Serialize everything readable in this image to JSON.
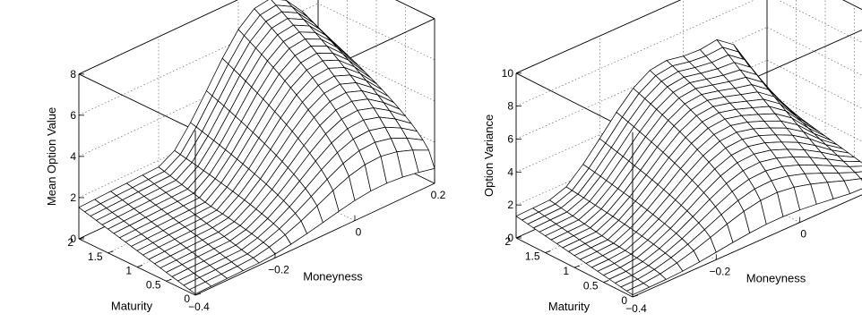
{
  "chart_data": [
    {
      "type": "surface",
      "title": "",
      "xlabel": "Maturity",
      "ylabel": "Moneyness",
      "zlabel": "Mean Option Value",
      "x_ticks": [
        "0",
        "0.5",
        "1",
        "1.5",
        "2"
      ],
      "y_ticks": [
        "−0.4",
        "−0.2",
        "0",
        "0.2"
      ],
      "z_ticks": [
        "0",
        "2",
        "4",
        "6",
        "8"
      ],
      "xlim": [
        0,
        2
      ],
      "ylim": [
        -0.4,
        0.2
      ],
      "zlim": [
        0,
        8
      ],
      "grid": true,
      "surface": {
        "maturity": [
          0,
          0.1,
          0.2,
          0.3,
          0.4,
          0.5,
          0.6,
          0.7,
          0.8,
          0.9,
          1.0,
          1.1,
          1.2,
          1.3,
          1.4,
          1.5,
          1.6,
          1.7,
          1.8,
          1.9,
          2.0
        ],
        "moneyness": [
          -0.4,
          -0.36,
          -0.32,
          -0.28,
          -0.24,
          -0.2,
          -0.16,
          -0.12,
          -0.08,
          -0.04,
          0,
          0.04,
          0.08,
          0.12,
          0.16,
          0.2
        ],
        "values_at_corners": {
          "maturity_0_moneyness_-0.4": 0.1,
          "maturity_2_moneyness_-0.4": 2.6,
          "maturity_2_moneyness_0.2": 3.4,
          "maturity_0_moneyness_0.2": 0.5
        },
        "peak": {
          "maturity": 1.2,
          "moneyness": 0.06,
          "value": 7.7
        }
      }
    },
    {
      "type": "surface",
      "title": "",
      "xlabel": "Maturity",
      "ylabel": "Moneyness",
      "zlabel": "Option Variance",
      "x_ticks": [
        "0",
        "0.5",
        "1",
        "1.5",
        "2"
      ],
      "y_ticks": [
        "−0.4",
        "−0.2",
        "0",
        "0.2"
      ],
      "z_ticks": [
        "0",
        "2",
        "4",
        "6",
        "8",
        "10"
      ],
      "xlim": [
        0,
        2
      ],
      "ylim": [
        -0.4,
        0.2
      ],
      "zlim": [
        0,
        10
      ],
      "grid": true,
      "surface": {
        "maturity": [
          0,
          0.1,
          0.2,
          0.3,
          0.4,
          0.5,
          0.6,
          0.7,
          0.8,
          0.9,
          1.0,
          1.1,
          1.2,
          1.3,
          1.4,
          1.5,
          1.6,
          1.7,
          1.8,
          1.9,
          2.0
        ],
        "moneyness": [
          -0.4,
          -0.36,
          -0.32,
          -0.28,
          -0.24,
          -0.2,
          -0.16,
          -0.12,
          -0.08,
          -0.04,
          0,
          0.04,
          0.08,
          0.12,
          0.16,
          0.2
        ],
        "values_at_corners": {
          "maturity_0_moneyness_-0.4": 0.2,
          "maturity_2_moneyness_-0.4": 2.1,
          "maturity_2_moneyness_0.2": 3.0,
          "maturity_0_moneyness_0.2": 0.6
        },
        "peak": {
          "maturity": 1.5,
          "moneyness": 0.1,
          "value": 9.7
        },
        "ridge": {
          "moneyness": -0.05,
          "value": 7.0
        }
      }
    }
  ]
}
